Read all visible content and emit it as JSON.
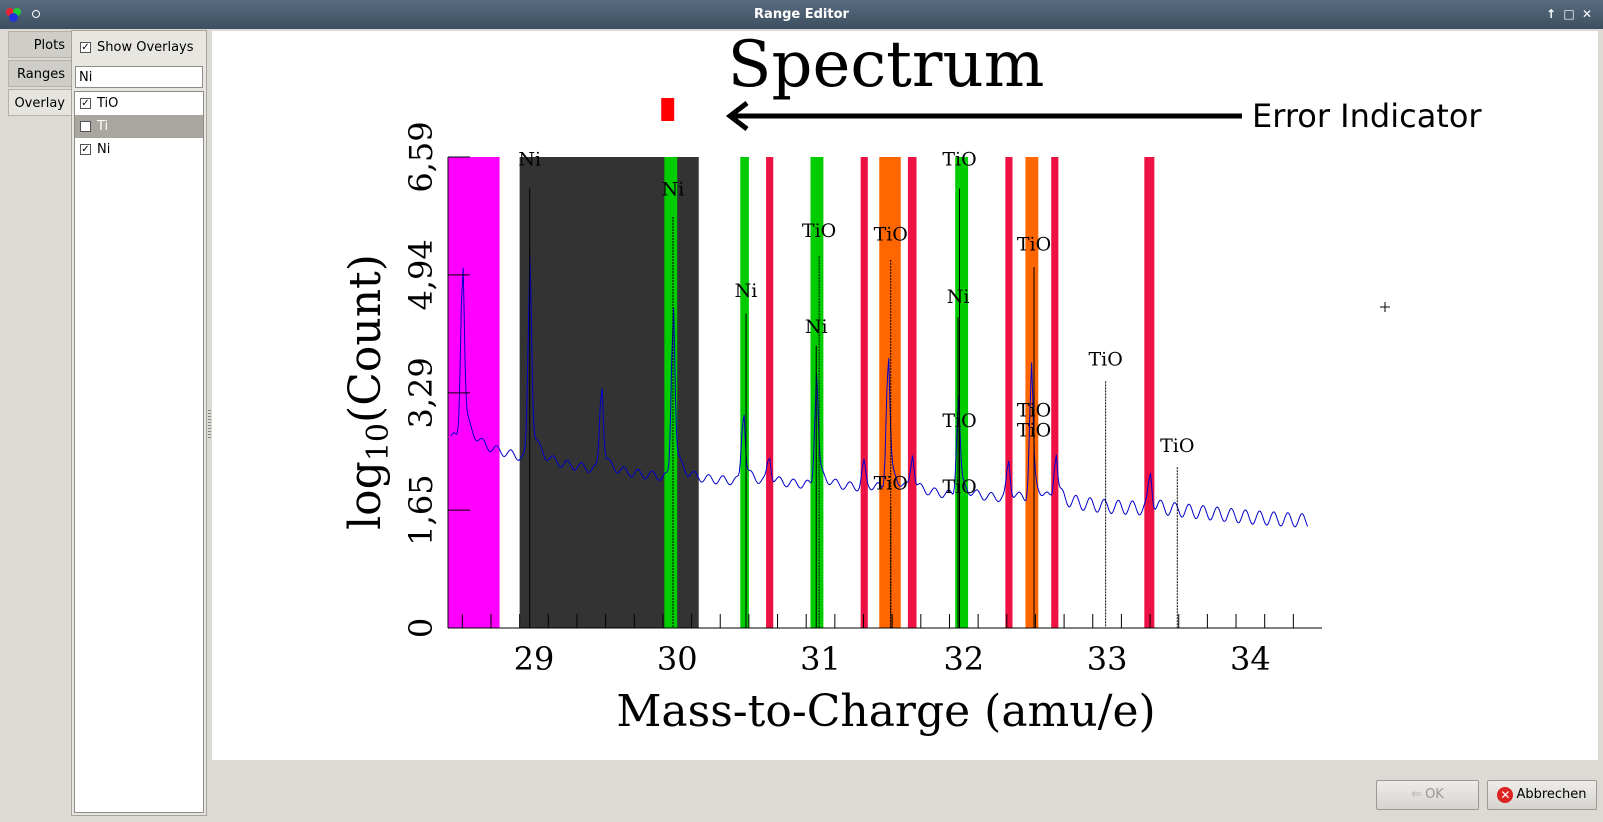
{
  "window": {
    "title": "Range Editor",
    "controls": [
      "↑",
      "□",
      "✕"
    ]
  },
  "tabs": [
    {
      "label": "Plots"
    },
    {
      "label": "Ranges"
    },
    {
      "label": "Overlay",
      "active": true
    }
  ],
  "overlay_panel": {
    "show_overlays_label": "Show Overlays",
    "show_overlays_checked": true,
    "search_value": "Ni",
    "items": [
      {
        "label": "TiO",
        "checked": true,
        "selected": false
      },
      {
        "label": "Ti",
        "checked": false,
        "selected": true
      },
      {
        "label": "Ni",
        "checked": true,
        "selected": false
      }
    ]
  },
  "annotation": {
    "error_indicator_label": "Error Indicator",
    "error_color": "#ff0000"
  },
  "chart_data": {
    "type": "line",
    "title": "Spectrum",
    "xlabel": "Mass-to-Charge (amu/e)",
    "ylabel_main": "log",
    "ylabel_sub": "10",
    "ylabel_rest": "(Count)",
    "xlim": [
      28.4,
      34.5
    ],
    "ylim": [
      0,
      6.59
    ],
    "xticks": [
      29,
      30,
      31,
      32,
      33,
      34
    ],
    "yticks": [
      "0",
      "1,65",
      "3,29",
      "4,94",
      "6,59"
    ],
    "ytick_values": [
      0,
      1.65,
      3.29,
      4.94,
      6.59
    ],
    "baseline": [
      [
        28.4,
        2.7
      ],
      [
        28.7,
        2.5
      ],
      [
        29.0,
        2.35
      ],
      [
        29.5,
        2.2
      ],
      [
        30.0,
        2.1
      ],
      [
        30.5,
        2.05
      ],
      [
        31.0,
        2.0
      ],
      [
        31.5,
        1.95
      ],
      [
        32.0,
        1.85
      ],
      [
        32.5,
        1.8
      ],
      [
        33.0,
        1.7
      ],
      [
        33.5,
        1.65
      ],
      [
        34.0,
        1.55
      ],
      [
        34.4,
        1.5
      ]
    ],
    "peaks": [
      {
        "x": 28.5,
        "y": 4.85
      },
      {
        "x": 28.97,
        "y": 4.7
      },
      {
        "x": 29.47,
        "y": 3.3
      },
      {
        "x": 29.97,
        "y": 4.2
      },
      {
        "x": 30.46,
        "y": 2.95
      },
      {
        "x": 30.64,
        "y": 2.35
      },
      {
        "x": 30.97,
        "y": 3.3
      },
      {
        "x": 31.3,
        "y": 2.25
      },
      {
        "x": 31.47,
        "y": 3.6
      },
      {
        "x": 31.64,
        "y": 2.35
      },
      {
        "x": 31.96,
        "y": 3.0
      },
      {
        "x": 32.31,
        "y": 2.25
      },
      {
        "x": 32.47,
        "y": 3.35
      },
      {
        "x": 32.64,
        "y": 2.4
      },
      {
        "x": 33.3,
        "y": 2.1
      }
    ],
    "line_color": "#0000cc",
    "ranges": [
      {
        "x0": 28.4,
        "x1": 28.76,
        "color": "#ff00ff"
      },
      {
        "x0": 28.9,
        "x1": 30.15,
        "color": "#333333"
      },
      {
        "x0": 29.91,
        "x1": 30.0,
        "color": "#00cc00"
      },
      {
        "x0": 30.44,
        "x1": 30.5,
        "color": "#00cc00"
      },
      {
        "x0": 30.62,
        "x1": 30.67,
        "color": "#ee1144"
      },
      {
        "x0": 30.93,
        "x1": 31.02,
        "color": "#00cc00"
      },
      {
        "x0": 31.28,
        "x1": 31.33,
        "color": "#ee1144"
      },
      {
        "x0": 31.41,
        "x1": 31.56,
        "color": "#ff6600"
      },
      {
        "x0": 31.61,
        "x1": 31.67,
        "color": "#ee1144"
      },
      {
        "x0": 31.94,
        "x1": 32.03,
        "color": "#00cc00"
      },
      {
        "x0": 32.29,
        "x1": 32.34,
        "color": "#ee1144"
      },
      {
        "x0": 32.43,
        "x1": 32.52,
        "color": "#ff6600"
      },
      {
        "x0": 32.61,
        "x1": 32.66,
        "color": "#ee1144"
      },
      {
        "x0": 33.26,
        "x1": 33.33,
        "color": "#ee1144"
      }
    ],
    "markers": [
      {
        "x": 28.97,
        "y": 6.15,
        "label": "Ni",
        "style": "solid",
        "labelY": 6.47
      },
      {
        "x": 29.97,
        "y": 5.75,
        "label": "Ni",
        "style": "dotted",
        "labelY": 6.05
      },
      {
        "x": 30.48,
        "y": 4.4,
        "label": "Ni",
        "style": "solid",
        "labelY": 4.63
      },
      {
        "x": 30.99,
        "y": 5.2,
        "label": "TiO",
        "style": "dotted",
        "labelY": 5.47
      },
      {
        "x": 30.97,
        "y": 3.95,
        "label": "Ni",
        "style": "solid",
        "labelY": 4.13
      },
      {
        "x": 31.49,
        "y": 5.15,
        "label": "TiO",
        "style": "dotted",
        "labelY": 5.42
      },
      {
        "x": 31.49,
        "y": 1.7,
        "label": "TiO",
        "style": "dotted",
        "labelY": 1.94
      },
      {
        "x": 31.97,
        "y": 6.15,
        "label": "TiO",
        "style": "solid",
        "labelY": 6.47
      },
      {
        "x": 31.96,
        "y": 4.35,
        "label": "Ni",
        "style": "solid",
        "labelY": 4.55
      },
      {
        "x": 31.97,
        "y": 2.55,
        "label": "TiO",
        "style": "dotted",
        "labelY": 2.81
      },
      {
        "x": 31.97,
        "y": 1.7,
        "label": "TiO",
        "style": "dotted",
        "labelY": 1.89
      },
      {
        "x": 32.49,
        "y": 5.05,
        "label": "TiO",
        "style": "solid",
        "labelY": 5.28
      },
      {
        "x": 32.49,
        "y": 2.75,
        "label": "TiO",
        "style": "dotted",
        "labelY": 2.96
      },
      {
        "x": 32.49,
        "y": 2.5,
        "label": "TiO",
        "style": "dotted",
        "labelY": 2.68
      },
      {
        "x": 32.99,
        "y": 3.45,
        "label": "TiO",
        "style": "dotted",
        "labelY": 3.67
      },
      {
        "x": 33.49,
        "y": 2.25,
        "label": "TiO",
        "style": "dotted",
        "labelY": 2.46
      }
    ],
    "error_marker": {
      "x": 29.93
    },
    "grid": false
  },
  "buttons": {
    "ok_label": "OK",
    "ok_enabled": false,
    "cancel_label": "Abbrechen"
  }
}
